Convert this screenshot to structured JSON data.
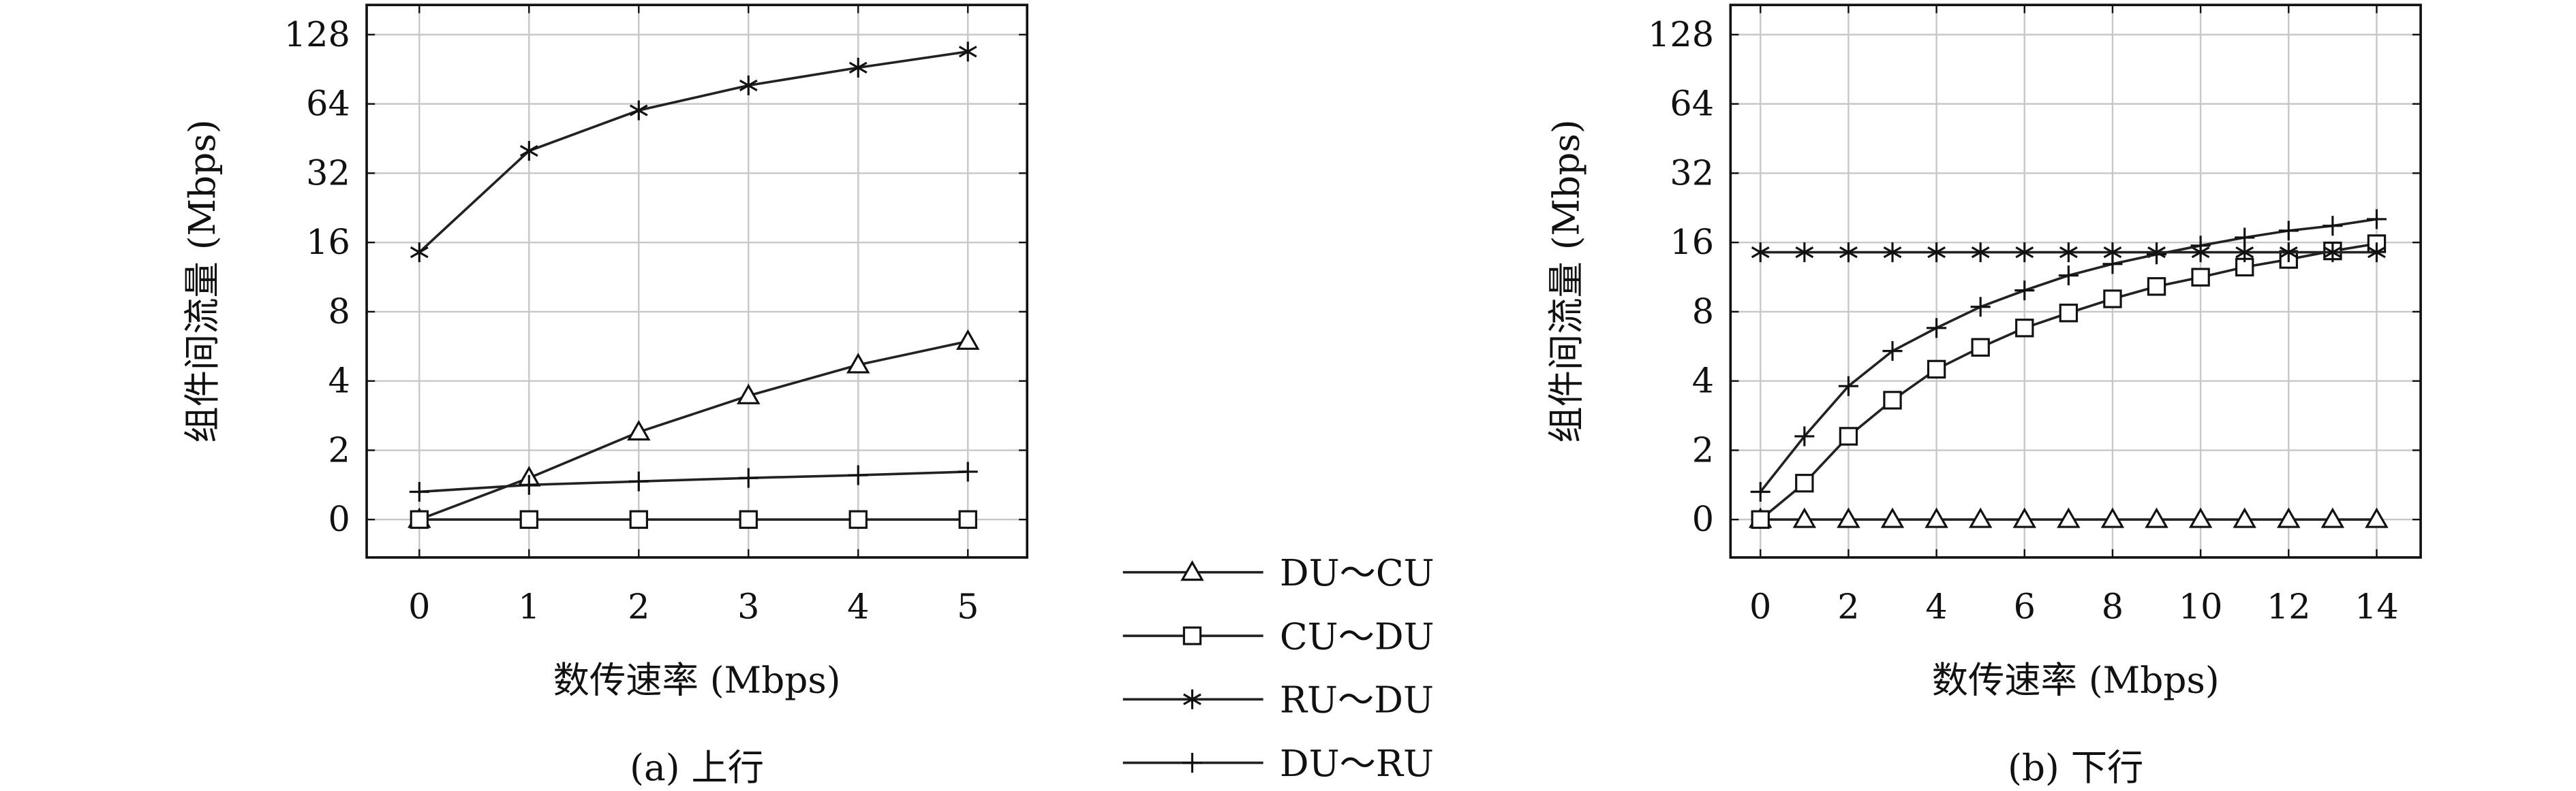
{
  "legend": [
    {
      "label": "DU～CU",
      "marker": "triangle"
    },
    {
      "label": "CU～DU",
      "marker": "square"
    },
    {
      "label": "RU～DU",
      "marker": "asterisk"
    },
    {
      "label": "DU～RU",
      "marker": "plus"
    }
  ],
  "chart_data": [
    {
      "type": "line",
      "caption": "(a) 上行",
      "xlabel": "数传速率 (Mbps)",
      "ylabel": "组件间流量 (Mbps)",
      "yscale": "log2 (0 label at baseline)",
      "grid": true,
      "xlim": [
        -0.48,
        5.54
      ],
      "xticks": [
        0,
        1,
        2,
        3,
        4,
        5
      ],
      "yticks": [
        0,
        2,
        4,
        8,
        16,
        32,
        64,
        128
      ],
      "x": [
        0,
        1,
        2,
        3,
        4,
        5
      ],
      "series": [
        {
          "name": "DU～CU",
          "values": [
            0,
            1.2,
            2.4,
            3.45,
            4.7,
            5.95
          ]
        },
        {
          "name": "CU～DU",
          "values": [
            0,
            0,
            0,
            0,
            0,
            0
          ]
        },
        {
          "name": "RU～DU",
          "values": [
            14.5,
            40,
            60,
            77,
            92,
            108
          ]
        },
        {
          "name": "DU～RU",
          "values": [
            0.8,
            1.0,
            1.1,
            1.2,
            1.28,
            1.38
          ]
        }
      ]
    },
    {
      "type": "line",
      "caption": "(b) 下行",
      "xlabel": "数传速率 (Mbps)",
      "ylabel": "组件间流量 (Mbps)",
      "yscale": "log2 (0 label at baseline)",
      "grid": true,
      "xlim": [
        -0.68,
        15.0
      ],
      "xticks": [
        0,
        2,
        4,
        6,
        8,
        10,
        12,
        14
      ],
      "yticks": [
        0,
        2,
        4,
        8,
        16,
        32,
        64,
        128
      ],
      "x": [
        0,
        1,
        2,
        3,
        4,
        5,
        6,
        7,
        8,
        9,
        10,
        11,
        12,
        13,
        14
      ],
      "series": [
        {
          "name": "DU～CU",
          "values": [
            0,
            0,
            0,
            0,
            0,
            0,
            0,
            0,
            0,
            0,
            0,
            0,
            0,
            0,
            0
          ]
        },
        {
          "name": "CU～DU",
          "values": [
            0,
            1.05,
            2.3,
            3.3,
            4.5,
            5.6,
            6.8,
            7.9,
            9.1,
            10.3,
            11.3,
            12.5,
            13.5,
            14.7,
            15.8
          ]
        },
        {
          "name": "RU～DU",
          "values": [
            14.5,
            14.5,
            14.5,
            14.5,
            14.5,
            14.5,
            14.5,
            14.5,
            14.5,
            14.5,
            14.5,
            14.5,
            14.5,
            14.5,
            14.5
          ]
        },
        {
          "name": "DU～RU",
          "values": [
            0.8,
            2.3,
            3.8,
            5.4,
            6.8,
            8.4,
            9.9,
            11.5,
            12.9,
            14.2,
            15.5,
            16.8,
            18,
            18.9,
            20.2
          ]
        }
      ]
    }
  ]
}
